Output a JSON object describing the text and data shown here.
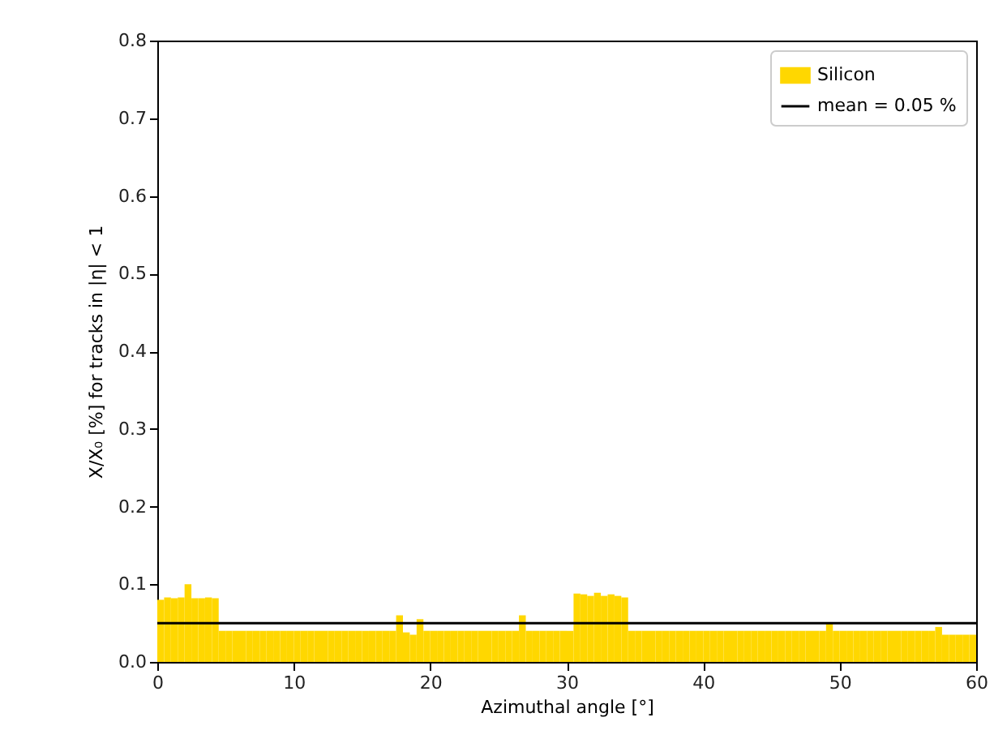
{
  "chart_data": {
    "type": "histogram",
    "xlabel": "Azimuthal angle [°]",
    "ylabel": "X/X₀ [%] for tracks in |η| < 1",
    "bins": [
      0,
      0.5,
      1,
      1.5,
      2,
      2.5,
      3,
      3.5,
      4,
      4.5,
      5,
      5.5,
      6,
      6.5,
      7,
      7.5,
      8,
      8.5,
      9,
      9.5,
      10,
      10.5,
      11,
      11.5,
      12,
      12.5,
      13,
      13.5,
      14,
      14.5,
      15,
      15.5,
      16,
      16.5,
      17,
      17.5,
      18,
      18.5,
      19,
      19.5,
      20,
      20.5,
      21,
      21.5,
      22,
      22.5,
      23,
      23.5,
      24,
      24.5,
      25,
      25.5,
      26,
      26.5,
      27,
      27.5,
      28,
      28.5,
      29,
      29.5,
      30,
      30.5,
      31,
      31.5,
      32,
      32.5,
      33,
      33.5,
      34,
      34.5,
      35,
      35.5,
      36,
      36.5,
      37,
      37.5,
      38,
      38.5,
      39,
      39.5,
      40,
      40.5,
      41,
      41.5,
      42,
      42.5,
      43,
      43.5,
      44,
      44.5,
      45,
      45.5,
      46,
      46.5,
      47,
      47.5,
      48,
      48.5,
      49,
      49.5,
      50,
      50.5,
      51,
      51.5,
      52,
      52.5,
      53,
      53.5,
      54,
      54.5,
      55,
      55.5,
      56,
      56.5,
      57,
      57.5,
      58,
      58.5,
      59,
      59.5,
      60
    ],
    "series": [
      {
        "name": "Silicon",
        "color": "#ffd700",
        "values": [
          0.08,
          0.083,
          0.082,
          0.083,
          0.1,
          0.082,
          0.082,
          0.083,
          0.082,
          0.04,
          0.04,
          0.04,
          0.04,
          0.04,
          0.04,
          0.04,
          0.04,
          0.04,
          0.04,
          0.04,
          0.04,
          0.04,
          0.04,
          0.04,
          0.04,
          0.04,
          0.04,
          0.04,
          0.04,
          0.04,
          0.04,
          0.04,
          0.04,
          0.04,
          0.04,
          0.06,
          0.038,
          0.035,
          0.055,
          0.04,
          0.04,
          0.04,
          0.04,
          0.04,
          0.04,
          0.04,
          0.04,
          0.04,
          0.04,
          0.04,
          0.04,
          0.04,
          0.04,
          0.06,
          0.04,
          0.04,
          0.04,
          0.04,
          0.04,
          0.04,
          0.04,
          0.088,
          0.087,
          0.085,
          0.089,
          0.085,
          0.087,
          0.085,
          0.083,
          0.04,
          0.04,
          0.04,
          0.04,
          0.04,
          0.04,
          0.04,
          0.04,
          0.04,
          0.04,
          0.04,
          0.04,
          0.04,
          0.04,
          0.04,
          0.04,
          0.04,
          0.04,
          0.04,
          0.04,
          0.04,
          0.04,
          0.04,
          0.04,
          0.04,
          0.04,
          0.04,
          0.04,
          0.04,
          0.05,
          0.04,
          0.04,
          0.04,
          0.04,
          0.04,
          0.04,
          0.04,
          0.04,
          0.04,
          0.04,
          0.04,
          0.04,
          0.04,
          0.04,
          0.04,
          0.045,
          0.035,
          0.035,
          0.035,
          0.035,
          0.035
        ]
      }
    ],
    "ref_lines": [
      {
        "axis": "y",
        "value": 0.05,
        "label": "mean = 0.05 %",
        "color": "#000000"
      }
    ],
    "xlim": [
      0,
      60
    ],
    "xticks": [
      0,
      10,
      20,
      30,
      40,
      50,
      60
    ],
    "ylim": [
      0,
      0.8
    ],
    "yticks": [
      {
        "value": 0,
        "label": "0.0"
      },
      0.1,
      0.2,
      0.3,
      0.4,
      0.5,
      0.6,
      0.7,
      0.8
    ],
    "grid": false,
    "legend": "top right"
  }
}
